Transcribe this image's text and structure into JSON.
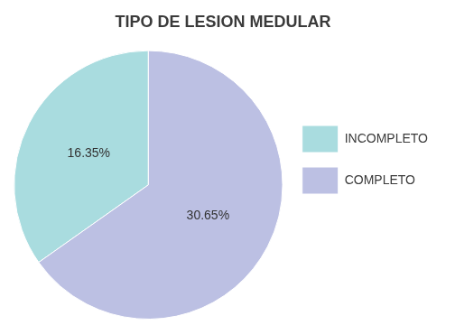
{
  "chart_data": {
    "type": "pie",
    "title": "TIPO DE LESION MEDULAR",
    "categories": [
      "INCOMPLETO",
      "COMPLETO"
    ],
    "values": [
      16.35,
      30.65
    ],
    "value_labels": [
      "16.35%",
      "30.65%"
    ],
    "colors": [
      "#a9dcdf",
      "#bcc0e3"
    ],
    "data_labels": true,
    "legend": "right"
  }
}
